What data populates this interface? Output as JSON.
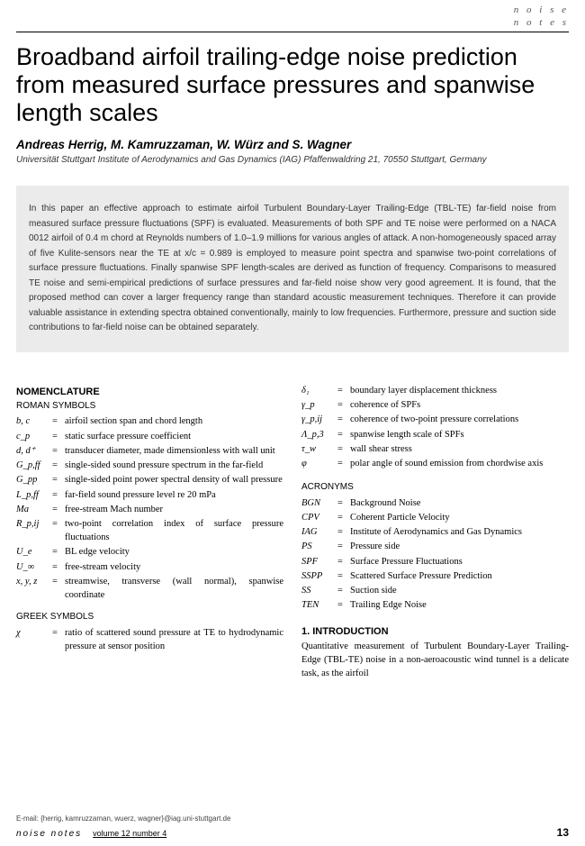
{
  "header": {
    "label_line1": "n o i s e",
    "label_line2": "n o t e s"
  },
  "title": "Broadband airfoil trailing-edge noise prediction from measured surface pressures and spanwise length scales",
  "authors": "Andreas Herrig, M. Kamruzzaman, W. Würz and S. Wagner",
  "affiliation": "Universität Stuttgart Institute of Aerodynamics and Gas Dynamics (IAG) Pfaffenwaldring 21, 70550 Stuttgart, Germany",
  "abstract": "In this paper an effective approach to estimate airfoil Turbulent Boundary-Layer Trailing-Edge (TBL-TE) far-field noise from measured surface pressure fluctuations (SPF) is evaluated. Measurements of both SPF and TE noise were performed on a NACA 0012 airfoil of 0.4 m chord at Reynolds numbers of 1.0–1.9 millions for various angles of attack. A non-homogeneously spaced array of five Kulite-sensors near the TE at x/c = 0.989 is employed to measure point spectra and spanwise two-point correlations of surface pressure fluctuations. Finally spanwise SPF length-scales are derived as function of frequency. Comparisons to measured TE noise and semi-empirical predictions of surface pressures and far-field noise show very good agreement. It is found, that the proposed method can cover a larger frequency range than standard acoustic measurement techniques. Therefore it can provide valuable assistance in extending spectra obtained conventionally, mainly to low frequencies. Furthermore, pressure and suction side contributions to far-field noise can be obtained separately.",
  "nomenclature": {
    "heading": "NOMENCLATURE",
    "roman_heading": "ROMAN SYMBOLS",
    "roman": [
      {
        "sym": "b, c",
        "def": "airfoil section span and chord length"
      },
      {
        "sym": "c_p",
        "def": "static surface pressure coefficient"
      },
      {
        "sym": "d, d⁺",
        "def": "transducer diameter, made dimensionless with wall unit"
      },
      {
        "sym": "G_p,ff",
        "def": "single-sided sound pressure spectrum in the far-field"
      },
      {
        "sym": "G_pp",
        "def": "single-sided point power spectral density of wall pressure"
      },
      {
        "sym": "L_p,ff",
        "def": "far-field sound pressure level re 20 mPa"
      },
      {
        "sym": "Ma",
        "def": "free-stream Mach number"
      },
      {
        "sym": "R_p,ij",
        "def": "two-point correlation index of surface pressure fluctuations"
      },
      {
        "sym": "U_e",
        "def": "BL edge velocity"
      },
      {
        "sym": "U_∞",
        "def": "free-stream velocity"
      },
      {
        "sym": "x, y, z",
        "def": "streamwise, transverse (wall normal), spanwise coordinate"
      }
    ],
    "greek_heading": "GREEK SYMBOLS",
    "greek_col1": [
      {
        "sym": "χ",
        "def": "ratio of scattered sound pressure at TE to hydrodynamic pressure at sensor position"
      }
    ],
    "greek_col2": [
      {
        "sym": "δ₁",
        "def": "boundary layer displacement thickness"
      },
      {
        "sym": "γ_p",
        "def": "coherence of SPFs"
      },
      {
        "sym": "γ_p,ij",
        "def": "coherence of two-point pressure correlations"
      },
      {
        "sym": "Λ_p,3",
        "def": "spanwise length scale of SPFs"
      },
      {
        "sym": "τ_w",
        "def": "wall shear stress"
      },
      {
        "sym": "φ",
        "def": "polar angle of sound emission from chordwise axis"
      }
    ],
    "acronyms_heading": "ACRONYMS",
    "acronyms": [
      {
        "sym": "BGN",
        "def": "Background Noise"
      },
      {
        "sym": "CPV",
        "def": "Coherent Particle Velocity"
      },
      {
        "sym": "IAG",
        "def": "Institute of Aerodynamics and Gas Dynamics"
      },
      {
        "sym": "PS",
        "def": "Pressure side"
      },
      {
        "sym": "SPF",
        "def": "Surface Pressure Fluctuations"
      },
      {
        "sym": "SSPP",
        "def": "Scattered Surface Pressure Prediction"
      },
      {
        "sym": "SS",
        "def": "Suction side"
      },
      {
        "sym": "TEN",
        "def": "Trailing Edge Noise"
      }
    ]
  },
  "intro": {
    "heading": "1. INTRODUCTION",
    "text": "Quantitative measurement of Turbulent Boundary-Layer Trailing-Edge (TBL-TE) noise in a non-aeroacoustic wind tunnel is a delicate task, as the airfoil"
  },
  "email": "E-mail: {herrig, kamruzzaman, wuerz, wagner}@iag.uni-stuttgart.de",
  "footer": {
    "journal": "noise notes",
    "volume": "volume 12 number 4",
    "page": "13"
  }
}
